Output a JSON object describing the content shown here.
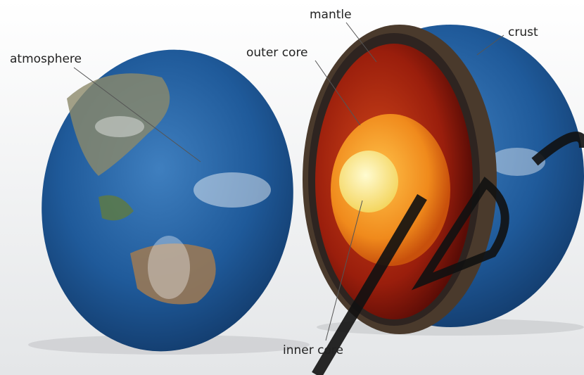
{
  "labels": {
    "mantle": "mantle",
    "crust": "crust",
    "atmosphere": "atmosphere",
    "outer_core": "outer core",
    "inner_core": "inner core"
  }
}
